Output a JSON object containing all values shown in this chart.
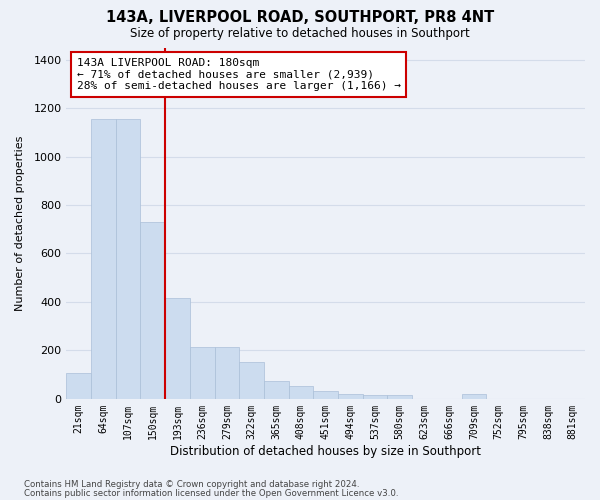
{
  "title": "143A, LIVERPOOL ROAD, SOUTHPORT, PR8 4NT",
  "subtitle": "Size of property relative to detached houses in Southport",
  "xlabel": "Distribution of detached houses by size in Southport",
  "ylabel": "Number of detached properties",
  "footer1": "Contains HM Land Registry data © Crown copyright and database right 2024.",
  "footer2": "Contains public sector information licensed under the Open Government Licence v3.0.",
  "categories": [
    "21sqm",
    "64sqm",
    "107sqm",
    "150sqm",
    "193sqm",
    "236sqm",
    "279sqm",
    "322sqm",
    "365sqm",
    "408sqm",
    "451sqm",
    "494sqm",
    "537sqm",
    "580sqm",
    "623sqm",
    "666sqm",
    "709sqm",
    "752sqm",
    "795sqm",
    "838sqm",
    "881sqm"
  ],
  "values": [
    105,
    1155,
    1155,
    730,
    415,
    215,
    215,
    150,
    75,
    55,
    32,
    22,
    15,
    15,
    0,
    0,
    22,
    0,
    0,
    0,
    0
  ],
  "bar_color": "#ccdcef",
  "bar_edge_color": "#aabfd8",
  "grid_color": "#d4dcea",
  "background_color": "#edf1f8",
  "vline_x_index": 4,
  "vline_color": "#cc0000",
  "annotation_text": "143A LIVERPOOL ROAD: 180sqm\n← 71% of detached houses are smaller (2,939)\n28% of semi-detached houses are larger (1,166) →",
  "annotation_box_color": "#ffffff",
  "annotation_box_edge": "#cc0000",
  "ylim": [
    0,
    1450
  ],
  "yticks": [
    0,
    200,
    400,
    600,
    800,
    1000,
    1200,
    1400
  ]
}
